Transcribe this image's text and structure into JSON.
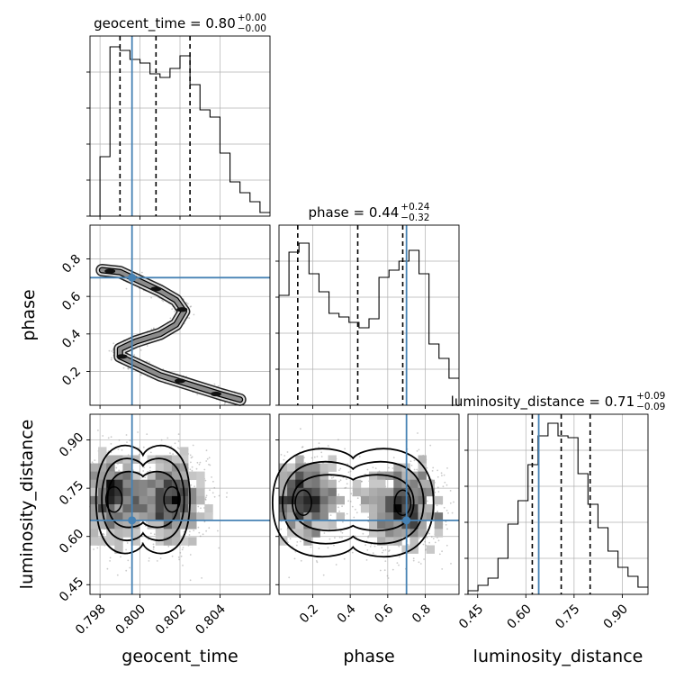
{
  "truth_color": "#4682b4",
  "line_color": "#000000",
  "chart_data": [
    {
      "type": "histogram",
      "title_base": "geocent_time = 0.80",
      "title_plus": "+0.00",
      "title_minus": "−0.00",
      "xlabel": "geocent_time",
      "xlim": [
        0.7975,
        0.8065
      ],
      "xticks": [
        0.798,
        0.8,
        0.802,
        0.804
      ],
      "xtick_labels": [
        "0.798",
        "0.800",
        "0.802",
        "0.804"
      ],
      "ylim": [
        0,
        1.0
      ],
      "yticks": [
        0,
        0.2,
        0.4,
        0.6,
        0.8
      ],
      "bins": {
        "edges": [
          0.7975,
          0.798,
          0.7985,
          0.799,
          0.7995,
          0.8,
          0.8005,
          0.801,
          0.8015,
          0.802,
          0.8025,
          0.803,
          0.8035,
          0.804,
          0.8045,
          0.805,
          0.8055,
          0.806,
          0.8065
        ],
        "heights": [
          0.0,
          0.33,
          0.94,
          0.92,
          0.87,
          0.85,
          0.79,
          0.77,
          0.82,
          0.89,
          0.73,
          0.59,
          0.55,
          0.35,
          0.19,
          0.13,
          0.08,
          0.02
        ]
      },
      "quantiles": [
        0.799,
        0.8008,
        0.8025
      ],
      "truth": 0.7996
    },
    {
      "type": "scatter+contour",
      "xlim": [
        0.7975,
        0.8065
      ],
      "xticks": [
        0.798,
        0.8,
        0.802,
        0.804
      ],
      "ylabel": "phase",
      "ylim": [
        0.02,
        0.98
      ],
      "yticks": [
        0.2,
        0.4,
        0.6,
        0.8
      ],
      "ytick_labels": [
        "0.2",
        "0.4",
        "0.6",
        "0.8"
      ],
      "ridge": {
        "x": [
          0.7981,
          0.799,
          0.8,
          0.801,
          0.8018,
          0.8022,
          0.8018,
          0.801,
          0.7998,
          0.799,
          0.799,
          0.7998,
          0.801,
          0.8025,
          0.804,
          0.805
        ],
        "y": [
          0.74,
          0.73,
          0.68,
          0.63,
          0.58,
          0.52,
          0.45,
          0.4,
          0.36,
          0.32,
          0.28,
          0.24,
          0.18,
          0.13,
          0.08,
          0.05
        ]
      },
      "truth_x": 0.7996,
      "truth_y": 0.7
    },
    {
      "type": "histogram",
      "title_base": "phase = 0.44",
      "title_plus": "+0.24",
      "title_minus": "−0.32",
      "xlim": [
        0.02,
        0.98
      ],
      "xticks": [
        0.2,
        0.4,
        0.6,
        0.8
      ],
      "ylim": [
        0,
        1.0
      ],
      "yticks": [
        0,
        0.2,
        0.4,
        0.6,
        0.8
      ],
      "bins": {
        "edges": [
          0.02,
          0.0733,
          0.1267,
          0.18,
          0.2333,
          0.2867,
          0.34,
          0.3933,
          0.4467,
          0.5,
          0.5533,
          0.6067,
          0.66,
          0.7133,
          0.7667,
          0.82,
          0.8733,
          0.9267,
          0.98
        ],
        "heights": [
          0.61,
          0.85,
          0.9,
          0.73,
          0.63,
          0.51,
          0.49,
          0.46,
          0.43,
          0.48,
          0.71,
          0.75,
          0.8,
          0.86,
          0.73,
          0.34,
          0.26,
          0.15
        ]
      },
      "quantiles": [
        0.12,
        0.44,
        0.68
      ],
      "truth": 0.7
    },
    {
      "type": "scatter+contour",
      "xlabel": "geocent_time",
      "xlim": [
        0.7975,
        0.8065
      ],
      "xticks": [
        0.798,
        0.8,
        0.802,
        0.804
      ],
      "xtick_labels": [
        "0.798",
        "0.800",
        "0.802",
        "0.804"
      ],
      "ylabel": "luminosity_distance",
      "ylim": [
        0.42,
        0.98
      ],
      "yticks": [
        0.45,
        0.6,
        0.75,
        0.9
      ],
      "ytick_labels": [
        "0.45",
        "0.60",
        "0.75",
        "0.90"
      ],
      "centers": [
        [
          0.7987,
          0.72
        ],
        [
          0.8016,
          0.71
        ]
      ],
      "truth_x": 0.7996,
      "truth_y": 0.65
    },
    {
      "type": "scatter+contour",
      "xlabel": "phase",
      "xlim": [
        0.02,
        0.98
      ],
      "xticks": [
        0.2,
        0.4,
        0.6,
        0.8
      ],
      "xtick_labels": [
        "0.2",
        "0.4",
        "0.6",
        "0.8"
      ],
      "ylim": [
        0.42,
        0.98
      ],
      "yticks": [
        0.45,
        0.6,
        0.75,
        0.9
      ],
      "centers": [
        [
          0.15,
          0.72
        ],
        [
          0.68,
          0.69
        ]
      ],
      "truth_x": 0.7,
      "truth_y": 0.65
    },
    {
      "type": "histogram",
      "title_base": "luminosity_distance = 0.71",
      "title_plus": "+0.09",
      "title_minus": "−0.09",
      "xlabel": "luminosity_distance",
      "xlim": [
        0.42,
        0.98
      ],
      "xticks": [
        0.45,
        0.6,
        0.75,
        0.9
      ],
      "xtick_labels": [
        "0.45",
        "0.60",
        "0.75",
        "0.90"
      ],
      "ylim": [
        0,
        1.0
      ],
      "yticks": [
        0,
        0.2,
        0.4,
        0.6,
        0.8
      ],
      "bins": {
        "edges": [
          0.42,
          0.4511,
          0.4822,
          0.5133,
          0.5444,
          0.5756,
          0.6067,
          0.6378,
          0.6689,
          0.7,
          0.7311,
          0.7622,
          0.7933,
          0.8244,
          0.8556,
          0.8867,
          0.9178,
          0.9489,
          0.98
        ],
        "heights": [
          0.02,
          0.05,
          0.09,
          0.2,
          0.39,
          0.52,
          0.72,
          0.88,
          0.95,
          0.88,
          0.87,
          0.67,
          0.5,
          0.37,
          0.24,
          0.15,
          0.1,
          0.04
        ]
      },
      "quantiles": [
        0.62,
        0.71,
        0.8
      ],
      "truth": 0.64
    }
  ]
}
